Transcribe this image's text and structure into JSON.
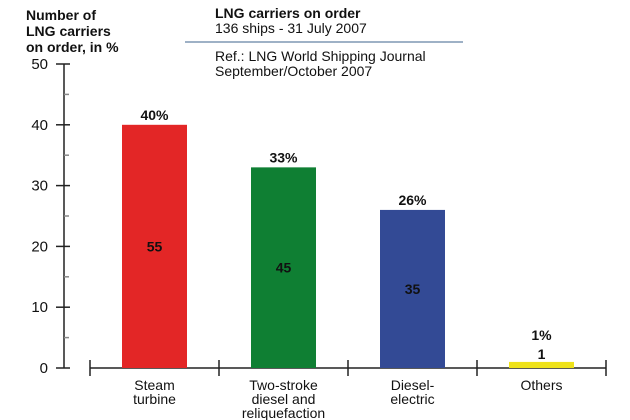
{
  "chart_data": {
    "type": "bar",
    "ylabel_lines": [
      "Number of",
      "LNG carriers",
      "on order, in %"
    ],
    "title": "LNG carriers on order",
    "subtitle": "136 ships - 31 July 2007",
    "reference_lines": [
      "Ref.: LNG World Shipping Journal",
      "September/October 2007"
    ],
    "categories": [
      [
        "Steam",
        "turbine"
      ],
      [
        "Two-stroke",
        "diesel and",
        "reliquefaction"
      ],
      [
        "Diesel-",
        "electric"
      ],
      [
        "Others"
      ]
    ],
    "values": [
      40,
      33,
      26,
      1
    ],
    "percent_labels": [
      "40%",
      "33%",
      "26%",
      "1%"
    ],
    "counts": [
      "55",
      "45",
      "35",
      "1"
    ],
    "colors": [
      "#e32626",
      "#0f7f33",
      "#334a95",
      "#eee21a"
    ],
    "ylim": [
      0,
      50
    ],
    "yticks": [
      0,
      10,
      20,
      30,
      40,
      50
    ],
    "grid": false,
    "separator_color": "#7f97b4"
  }
}
